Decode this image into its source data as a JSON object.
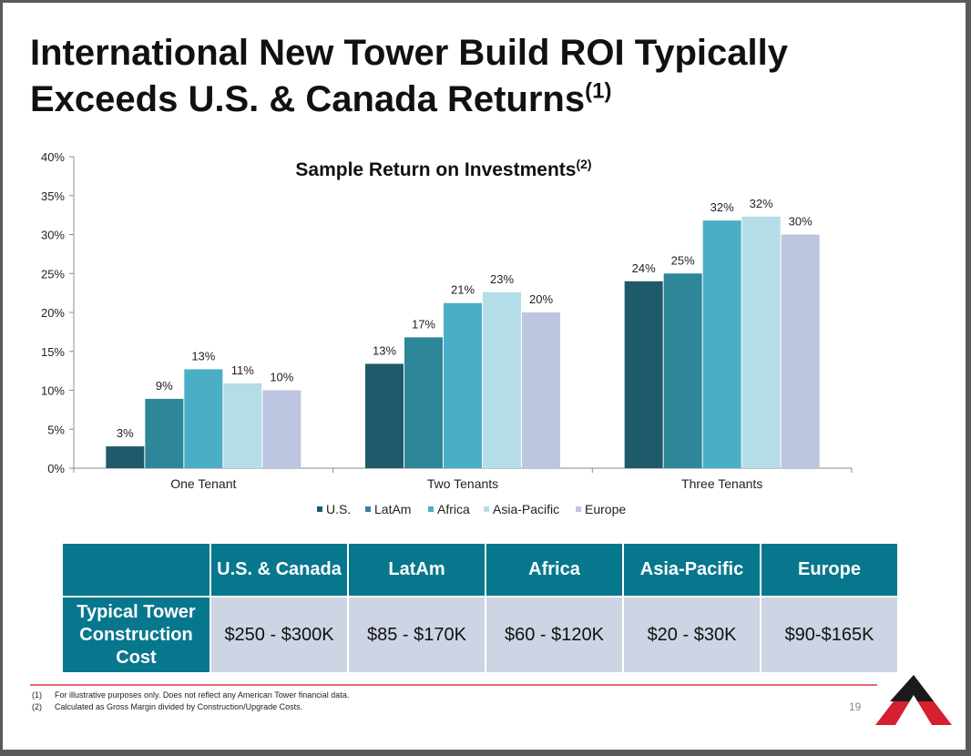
{
  "slide": {
    "title_line1": "International New Tower Build ROI Typically",
    "title_line2": "Exceeds U.S. & Canada Returns",
    "title_footnote_ref": "(1)",
    "page_number": "19"
  },
  "chart_data": {
    "type": "bar",
    "title": "Sample Return on Investments",
    "title_footnote_ref": "(2)",
    "categories": [
      "One Tenant",
      "Two Tenants",
      "Three Tenants"
    ],
    "y_ticks": [
      "0%",
      "5%",
      "10%",
      "15%",
      "20%",
      "25%",
      "30%",
      "35%",
      "40%"
    ],
    "ylim": [
      0,
      40
    ],
    "y_unit": "%",
    "grid": false,
    "legend_position": "bottom",
    "series": [
      {
        "name": "U.S.",
        "color": "#1f5a6a",
        "values": [
          3,
          13,
          24
        ],
        "labels": [
          "3%",
          "13%",
          "24%"
        ],
        "heights": [
          2.8,
          13.4,
          24
        ]
      },
      {
        "name": "LatAm",
        "color": "#2e8699",
        "values": [
          9,
          17,
          25
        ],
        "labels": [
          "9%",
          "17%",
          "25%"
        ],
        "heights": [
          8.9,
          16.8,
          25
        ]
      },
      {
        "name": "Africa",
        "color": "#4aaec7",
        "values": [
          13,
          21,
          32
        ],
        "labels": [
          "13%",
          "21%",
          "32%"
        ],
        "heights": [
          12.7,
          21.2,
          31.8
        ]
      },
      {
        "name": "Asia-Pacific",
        "color": "#b4dde8",
        "values": [
          11,
          23,
          32
        ],
        "labels": [
          "11%",
          "23%",
          "32%"
        ],
        "heights": [
          10.9,
          22.6,
          32.3
        ]
      },
      {
        "name": "Europe",
        "color": "#bcc6e0",
        "values": [
          10,
          20,
          30
        ],
        "labels": [
          "10%",
          "20%",
          "30%"
        ],
        "heights": [
          10,
          20,
          30
        ]
      }
    ]
  },
  "cost_table": {
    "columns": [
      "U.S. & Canada",
      "LatAm",
      "Africa",
      "Asia-Pacific",
      "Europe"
    ],
    "row_label": "Typical Tower Construction Cost",
    "values": [
      "$250 - $300K",
      "$85 - $170K",
      "$60 - $120K",
      "$20 - $30K",
      "$90-$165K"
    ]
  },
  "footnotes": [
    {
      "num": "(1)",
      "text": "For illustrative purposes only. Does not reflect any American Tower financial data."
    },
    {
      "num": "(2)",
      "text": "Calculated as Gross Margin divided by Construction/Upgrade Costs."
    }
  ],
  "colors": {
    "table_header": "#07778e",
    "table_cell": "#cdd5e4",
    "footnote_rule": "#e46579",
    "logo_red": "#d6202f"
  }
}
